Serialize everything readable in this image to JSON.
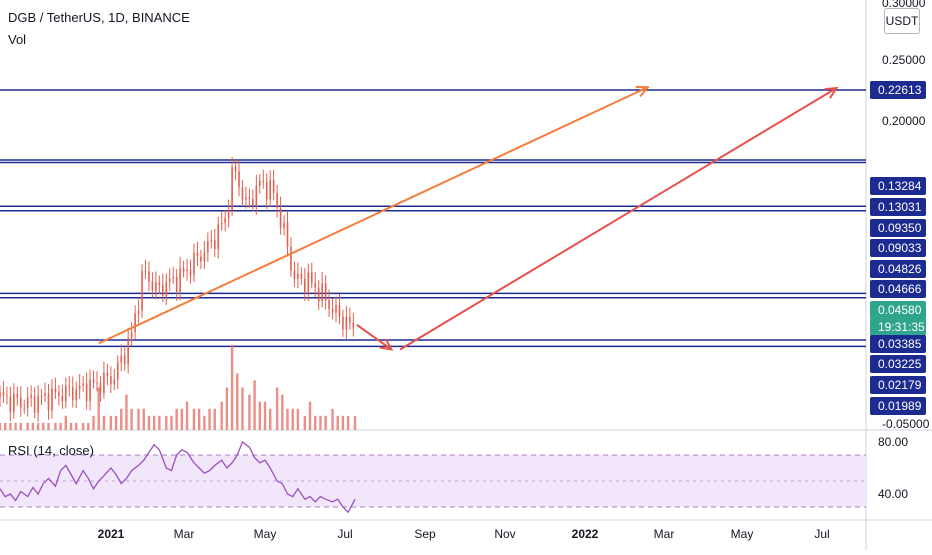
{
  "header": {
    "symbol_line": "DGB / TetherUS, 1D, BINANCE",
    "volume_label": "Vol",
    "rsi_label": "RSI (14, close)",
    "currency_unit": "USDT"
  },
  "colors": {
    "level_line": "#1c2b8f",
    "orange_arrow": "#f57c3a",
    "red_arrow": "#e8514a",
    "candle": "#e2604f",
    "volume": "#e7726a",
    "rsi_line": "#9c4fbf",
    "rsi_band": "#f1e6fa",
    "current_price_bg": "#2ea58c"
  },
  "chart_data": [
    {
      "type": "candlestick",
      "title": "DGB / TetherUS, 1D, BINANCE",
      "y_scale": "log",
      "price_axis_ticks": [
        "0.30000",
        "0.25000",
        "0.20000",
        "-0.05000"
      ],
      "price_labels": [
        {
          "value": "0.22613",
          "style": "level"
        },
        {
          "value": "0.13284",
          "style": "level"
        },
        {
          "value": "0.13031",
          "style": "level"
        },
        {
          "value": "0.09350",
          "style": "level"
        },
        {
          "value": "0.09033",
          "style": "level"
        },
        {
          "value": "0.04826",
          "style": "level"
        },
        {
          "value": "0.04666",
          "style": "level"
        },
        {
          "value": "0.04580",
          "style": "current"
        },
        {
          "value": "19:31:35",
          "style": "countdown"
        },
        {
          "value": "0.03385",
          "style": "level"
        },
        {
          "value": "0.03225",
          "style": "level"
        },
        {
          "value": "0.02179",
          "style": "level"
        },
        {
          "value": "0.01989",
          "style": "level"
        }
      ],
      "x_axis_labels": [
        "2021",
        "Mar",
        "May",
        "Jul",
        "Sep",
        "Nov",
        "2022",
        "Mar",
        "May",
        "Jul"
      ],
      "horizontal_levels": [
        0.22613,
        0.13284,
        0.13031,
        0.0935,
        0.09033,
        0.04826,
        0.04666,
        0.03385,
        0.03225
      ],
      "price_path": [
        [
          "2020-12-01",
          0.0219
        ],
        [
          "2020-12-15",
          0.0209
        ],
        [
          "2021-01-01",
          0.0222
        ],
        [
          "2021-01-20",
          0.0236
        ],
        [
          "2021-02-05",
          0.0256
        ],
        [
          "2021-02-15",
          0.0352
        ],
        [
          "2021-02-22",
          0.0575
        ],
        [
          "2021-03-01",
          0.0495
        ],
        [
          "2021-03-15",
          0.0548
        ],
        [
          "2021-04-01",
          0.0694
        ],
        [
          "2021-04-10",
          0.0846
        ],
        [
          "2021-04-15",
          0.1265
        ],
        [
          "2021-04-22",
          0.0938
        ],
        [
          "2021-05-01",
          0.1125
        ],
        [
          "2021-05-08",
          0.1031
        ],
        [
          "2021-05-15",
          0.0729
        ],
        [
          "2021-05-20",
          0.0537
        ],
        [
          "2021-05-28",
          0.0531
        ],
        [
          "2021-06-05",
          0.0479
        ],
        [
          "2021-06-12",
          0.0419
        ],
        [
          "2021-06-20",
          0.0382
        ],
        [
          "2021-06-24",
          0.0365
        ]
      ],
      "annotations": [
        {
          "kind": "arrow",
          "color": "orange",
          "from": [
            "2021-01-27",
            0.033
          ],
          "to": [
            "2021-12-10",
            0.231
          ]
        },
        {
          "kind": "arrow",
          "color": "red",
          "from": [
            "2021-06-25",
            0.038
          ],
          "to": [
            "2021-07-15",
            0.0315
          ]
        },
        {
          "kind": "arrow",
          "color": "red",
          "from": [
            "2021-07-20",
            0.0315
          ],
          "to": [
            "2022-03-29",
            0.2296
          ]
        }
      ]
    },
    {
      "type": "bar",
      "title": "Vol",
      "x_range": [
        "2020-12-01",
        "2021-06-24"
      ],
      "values": [
        1,
        1,
        1,
        1,
        1,
        1,
        1,
        1,
        1,
        1,
        1,
        1,
        2,
        1,
        1,
        1,
        1,
        2,
        6,
        2,
        2,
        2,
        3,
        5,
        3,
        3,
        3,
        2,
        2,
        2,
        2,
        2,
        3,
        3,
        4,
        3,
        3,
        2,
        3,
        3,
        4,
        6,
        12,
        8,
        6,
        5,
        7,
        4,
        4,
        3,
        6,
        5,
        3,
        3,
        3,
        2,
        4,
        2,
        2,
        2,
        3,
        2,
        2,
        2,
        2
      ]
    },
    {
      "type": "line",
      "title": "RSI (14, close)",
      "y_ticks": [
        "80.00",
        "40.00"
      ],
      "bands": [
        70,
        30
      ],
      "midline": 50,
      "x_range": [
        "2020-12-01",
        "2021-06-24"
      ],
      "values": [
        44,
        38,
        40,
        35,
        42,
        38,
        45,
        40,
        48,
        52,
        46,
        58,
        62,
        55,
        48,
        58,
        52,
        44,
        50,
        54,
        60,
        55,
        48,
        52,
        58,
        62,
        66,
        72,
        78,
        74,
        60,
        58,
        70,
        74,
        72,
        64,
        60,
        56,
        58,
        62,
        66,
        60,
        64,
        70,
        80,
        76,
        68,
        64,
        66,
        60,
        50,
        48,
        40,
        38,
        44,
        36,
        38,
        34,
        38,
        36,
        34,
        36,
        30,
        26,
        36
      ]
    }
  ]
}
